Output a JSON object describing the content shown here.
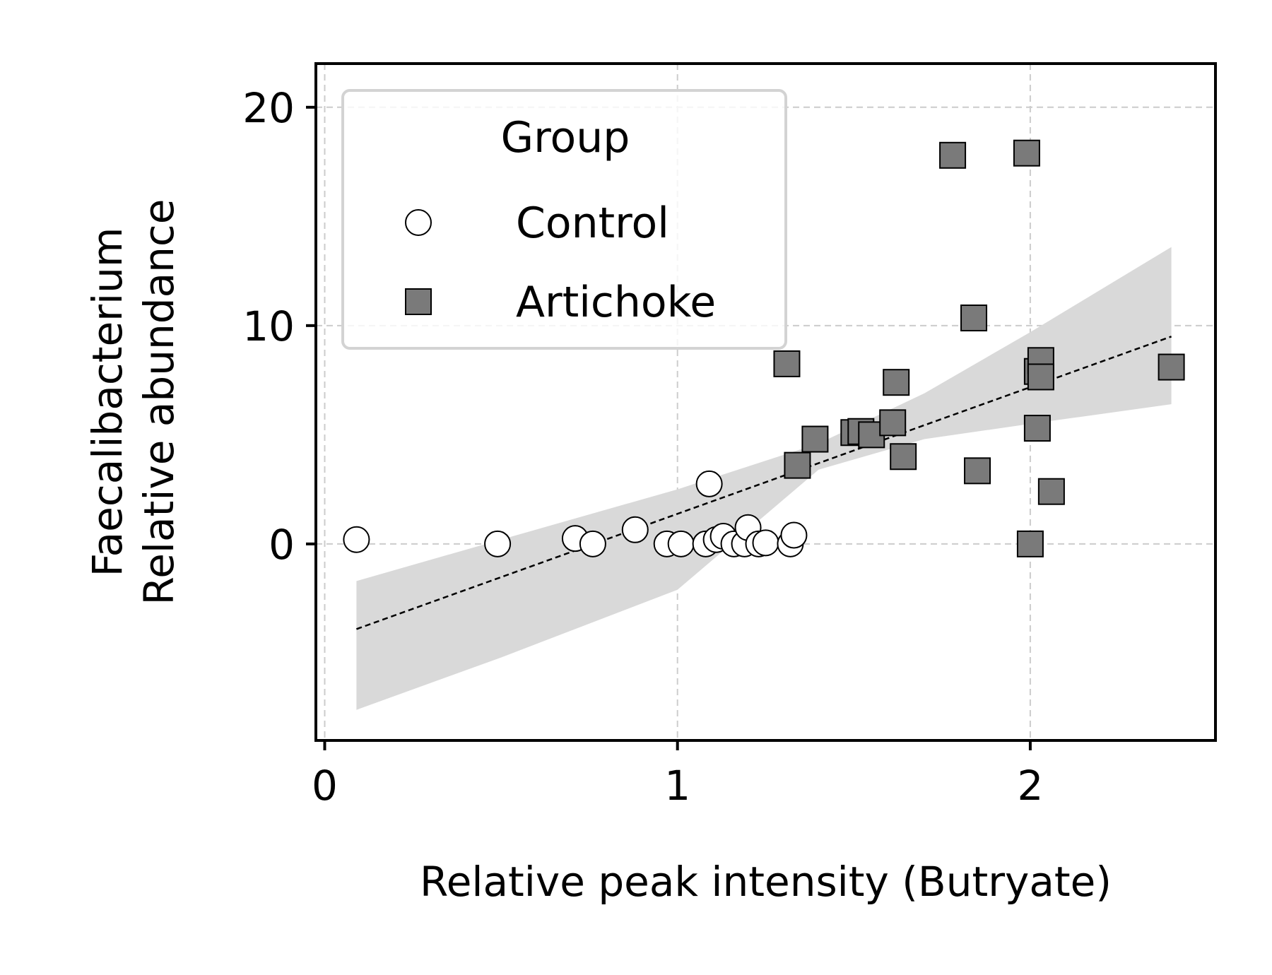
{
  "chart_data": {
    "type": "scatter",
    "xlabel": "Relative peak intensity (Butryate)",
    "ylabel_lines": [
      "Faecalibacterium",
      "Relative abundance"
    ],
    "xlim": [
      -0.025,
      2.525
    ],
    "ylim": [
      -9.0,
      22.0
    ],
    "xticks": [
      0,
      1,
      2
    ],
    "yticks": [
      0,
      10,
      20
    ],
    "grid": true,
    "legend": {
      "title": "Group",
      "placement": "top-left"
    },
    "series": [
      {
        "name": "Control",
        "marker": "circle",
        "fill": "#ffffff",
        "points": [
          [
            0.09,
            0.2
          ],
          [
            0.49,
            0.0
          ],
          [
            0.71,
            0.25
          ],
          [
            0.76,
            0.0
          ],
          [
            0.88,
            0.65
          ],
          [
            0.97,
            0.0
          ],
          [
            1.01,
            0.0
          ],
          [
            1.08,
            0.0
          ],
          [
            1.09,
            2.75
          ],
          [
            1.11,
            0.2
          ],
          [
            1.13,
            0.35
          ],
          [
            1.16,
            0.0
          ],
          [
            1.19,
            0.0
          ],
          [
            1.2,
            0.75
          ],
          [
            1.23,
            0.0
          ],
          [
            1.25,
            0.05
          ],
          [
            1.32,
            0.0
          ],
          [
            1.33,
            0.4
          ]
        ]
      },
      {
        "name": "Artichoke",
        "marker": "square",
        "fill": "#7a7a7a",
        "points": [
          [
            1.31,
            8.25
          ],
          [
            1.34,
            3.6
          ],
          [
            1.39,
            4.8
          ],
          [
            1.5,
            5.1
          ],
          [
            1.52,
            5.15
          ],
          [
            1.55,
            5.0
          ],
          [
            1.61,
            5.55
          ],
          [
            1.62,
            7.4
          ],
          [
            1.64,
            4.0
          ],
          [
            1.78,
            17.8
          ],
          [
            1.84,
            10.35
          ],
          [
            1.85,
            3.35
          ],
          [
            1.99,
            17.9
          ],
          [
            2.0,
            0.0
          ],
          [
            2.02,
            7.9
          ],
          [
            2.02,
            5.3
          ],
          [
            2.03,
            8.4
          ],
          [
            2.03,
            7.65
          ],
          [
            2.06,
            2.4
          ],
          [
            2.4,
            8.1
          ]
        ]
      }
    ],
    "regression": {
      "style": "dashed",
      "line": [
        [
          0.09,
          -3.9
        ],
        [
          2.4,
          9.5
        ]
      ],
      "ci_band": {
        "color": "#d9d9d9",
        "x": [
          0.09,
          0.5,
          1.0,
          1.4,
          1.7,
          2.0,
          2.4
        ],
        "lower": [
          -7.6,
          -5.2,
          -2.1,
          3.4,
          4.8,
          5.5,
          6.4
        ],
        "upper": [
          -1.7,
          0.2,
          2.5,
          4.6,
          6.9,
          9.7,
          13.6
        ]
      }
    }
  }
}
